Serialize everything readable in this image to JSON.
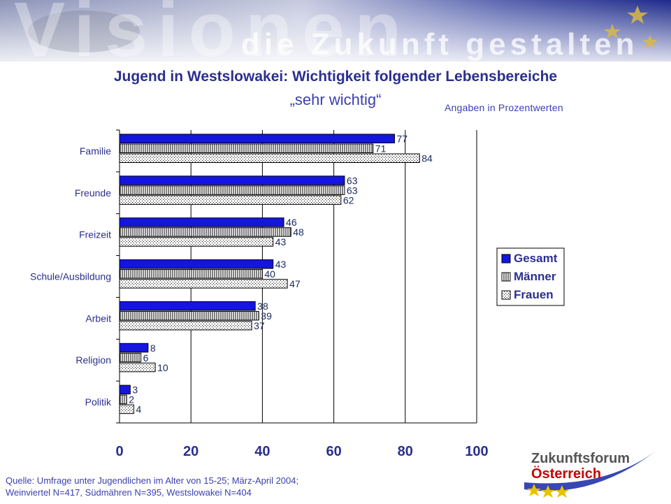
{
  "banner": {
    "word": "Visionen",
    "tagline": "die Zukunft gestalten"
  },
  "title": "Jugend in Westslowakei: Wichtigkeit folgender Lebensbereiche",
  "subtitle": "„sehr wichtig“",
  "unit_note": "Angaben in  Prozentwerten",
  "source_lines": [
    "Quelle: Umfrage unter Jugendlichen im Alter von 15-25; März-April 2004;",
    "Weinviertel N=417, Südmähren N=395, Westslowakei N=404"
  ],
  "logo": {
    "line1": "Zukunftsforum",
    "line2": "Österreich"
  },
  "colors": {
    "title": "#2b2f8f",
    "gesamt_fill": "#1515e0",
    "text_blue": "#3a3fb0"
  },
  "chart_data": {
    "type": "bar",
    "orientation": "horizontal",
    "categories": [
      "Familie",
      "Freunde",
      "Freizeit",
      "Schule/Ausbildung",
      "Arbeit",
      "Religion",
      "Politik"
    ],
    "series": [
      {
        "name": "Gesamt",
        "values": [
          77,
          63,
          46,
          43,
          38,
          8,
          3
        ],
        "pattern": "solid"
      },
      {
        "name": "Männer",
        "values": [
          71,
          63,
          48,
          40,
          39,
          6,
          2
        ],
        "pattern": "vertical-stripes"
      },
      {
        "name": "Frauen",
        "values": [
          84,
          62,
          43,
          47,
          37,
          10,
          4
        ],
        "pattern": "dots"
      }
    ],
    "xlim": [
      0,
      100
    ],
    "xticks": [
      0,
      20,
      40,
      60,
      80,
      100
    ],
    "grid": true,
    "legend_position": "right"
  }
}
